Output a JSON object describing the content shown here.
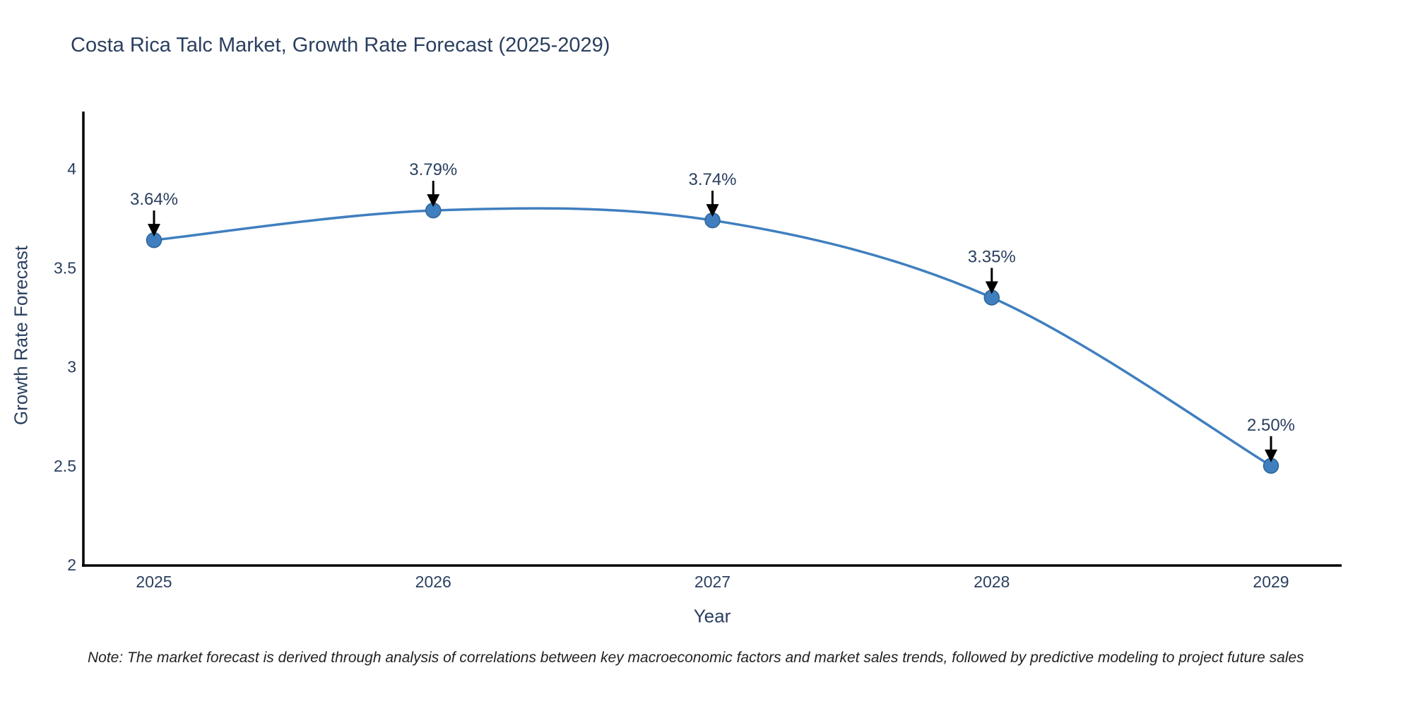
{
  "chart_data": {
    "type": "line",
    "title": "Costa Rica Talc Market, Growth Rate Forecast (2025-2029)",
    "xlabel": "Year",
    "ylabel": "Growth Rate Forecast",
    "x": [
      2025,
      2026,
      2027,
      2028,
      2029
    ],
    "x_tick_labels": [
      "2025",
      "2026",
      "2027",
      "2028",
      "2029"
    ],
    "series": [
      {
        "name": "Growth Rate Forecast",
        "values": [
          3.64,
          3.79,
          3.74,
          3.35,
          2.5
        ]
      }
    ],
    "point_labels": [
      "3.64%",
      "3.79%",
      "3.74%",
      "3.35%",
      "2.50%"
    ],
    "y_ticks": [
      2,
      2.5,
      3,
      3.5,
      4
    ],
    "y_tick_labels": [
      "2",
      "2.5",
      "3",
      "3.5",
      "4"
    ],
    "ylim": [
      2,
      4.29
    ],
    "grid": false,
    "legend_position": "none",
    "line_shape": "spline",
    "colors": {
      "line": "#3f7fbf",
      "marker": "#3f7fbf",
      "marker_edge": "#2f6496",
      "axis": "#000000",
      "tick_text": "#2a3f5f",
      "annotation_text": "#2a3f5f",
      "arrow": "#000000",
      "title_text": "#2a3f5f",
      "note_text": "#222222"
    }
  },
  "note": {
    "text": "Note: The market forecast is derived through analysis of correlations between key macroeconomic factors and market sales trends, followed by predictive modeling to project future sales"
  }
}
